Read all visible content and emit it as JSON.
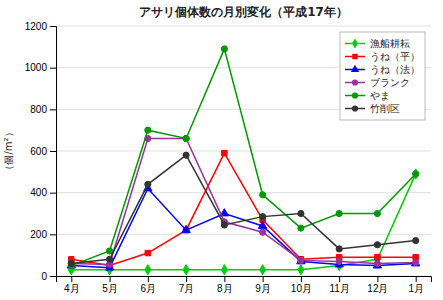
{
  "chart_data": {
    "type": "line",
    "title": "アサリ個体数の月別変化（平成17年）",
    "y_label": "（個/m²）",
    "categories": [
      "4月",
      "5月",
      "6月",
      "7月",
      "8月",
      "9月",
      "10月",
      "11月",
      "12月",
      "1月"
    ],
    "series": [
      {
        "name": "漁船耕耘",
        "color": "#00cc00",
        "marker": "diamond",
        "values": [
          30,
          30,
          30,
          30,
          30,
          30,
          30,
          50,
          80,
          490
        ]
      },
      {
        "name": "うね（平）",
        "color": "#ff0000",
        "marker": "square",
        "values": [
          80,
          50,
          110,
          220,
          590,
          270,
          80,
          90,
          90,
          90
        ]
      },
      {
        "name": "うね（法）",
        "color": "#0000ff",
        "marker": "triangle",
        "values": [
          50,
          40,
          420,
          220,
          300,
          240,
          70,
          55,
          50,
          60
        ]
      },
      {
        "name": "ブランク",
        "color": "#993399",
        "marker": "circle",
        "values": [
          60,
          55,
          660,
          660,
          260,
          210,
          75,
          70,
          60,
          65
        ]
      },
      {
        "name": "やま",
        "color": "#009900",
        "marker": "circle",
        "values": [
          50,
          120,
          700,
          660,
          1090,
          390,
          230,
          300,
          300,
          490
        ]
      },
      {
        "name": "竹削区",
        "color": "#333333",
        "marker": "circle",
        "values": [
          60,
          80,
          440,
          580,
          245,
          285,
          300,
          130,
          150,
          170
        ]
      }
    ],
    "ylim": [
      0,
      1200
    ],
    "yticks": [
      0,
      200,
      400,
      600,
      800,
      1000,
      1200
    ],
    "grid": true,
    "legend": "upper right"
  }
}
